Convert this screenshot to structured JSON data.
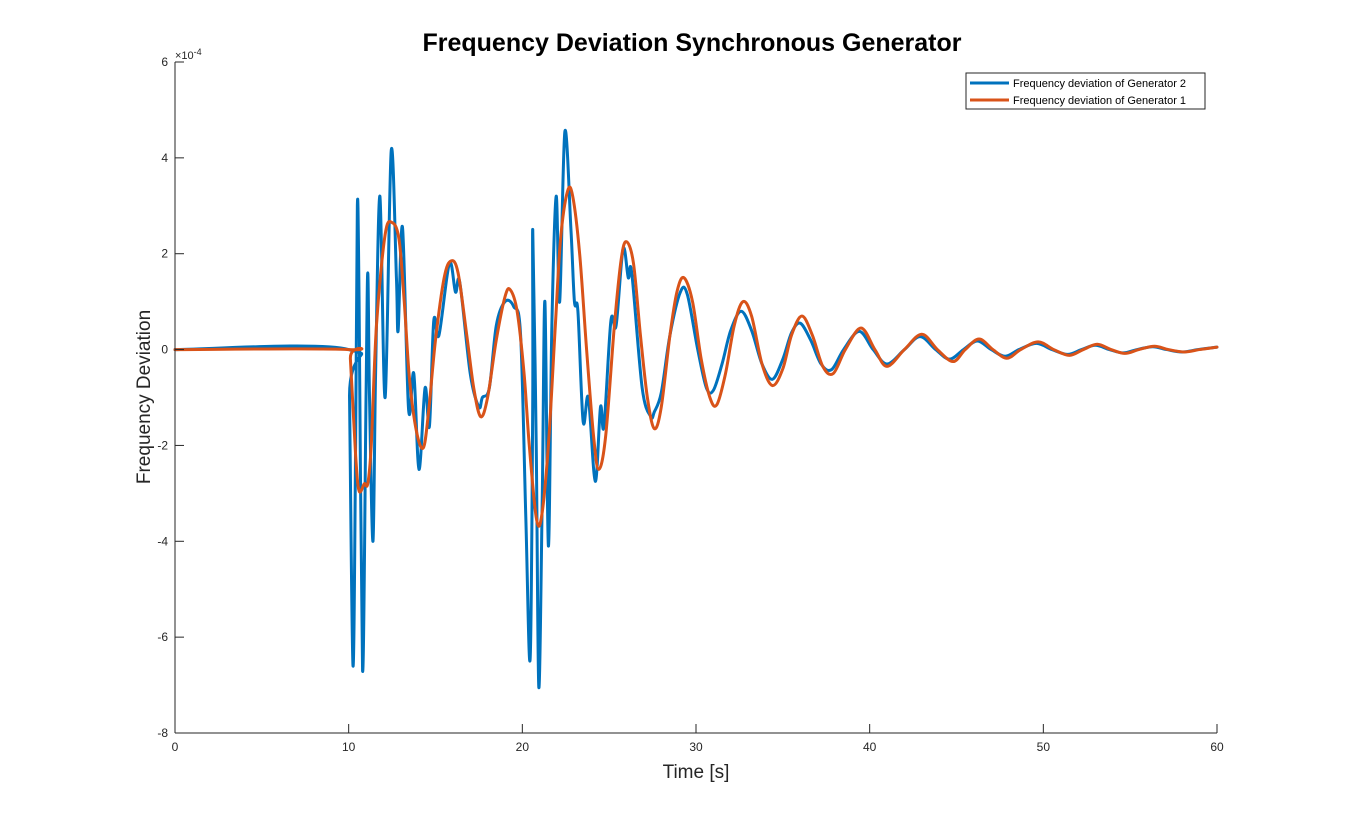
{
  "chart_data": {
    "type": "line",
    "title": "Frequency Deviation Synchronous Generator",
    "xlabel": "Time [s]",
    "ylabel": "Frequency Deviation",
    "xlim": [
      0,
      60
    ],
    "ylim": [
      -8,
      6
    ],
    "y_scale_exponent_label": "×10",
    "y_scale_exponent_power": "-4",
    "x_ticks": [
      "0",
      "10",
      "20",
      "30",
      "40",
      "50",
      "60"
    ],
    "y_ticks": [
      "-8",
      "-6",
      "-4",
      "-2",
      "0",
      "2",
      "4",
      "6"
    ],
    "grid": false,
    "legend_position": "top-right",
    "series": [
      {
        "name": "Frequency deviation of Generator 2",
        "color": "#0072BD",
        "points": [
          [
            0,
            0
          ],
          [
            10,
            0
          ],
          [
            10.05,
            -1.0
          ],
          [
            10.25,
            -6.6
          ],
          [
            10.4,
            -2.0
          ],
          [
            10.5,
            3.0
          ],
          [
            10.6,
            1.0
          ],
          [
            10.8,
            -6.7
          ],
          [
            11.0,
            -1.0
          ],
          [
            11.1,
            1.6
          ],
          [
            11.2,
            -1.0
          ],
          [
            11.4,
            -4.0
          ],
          [
            11.55,
            -0.5
          ],
          [
            11.8,
            3.2
          ],
          [
            12.1,
            -1.0
          ],
          [
            12.45,
            4.15
          ],
          [
            12.75,
            1.5
          ],
          [
            12.85,
            0.4
          ],
          [
            13.1,
            2.55
          ],
          [
            13.45,
            -1.25
          ],
          [
            13.75,
            -0.5
          ],
          [
            14.05,
            -2.5
          ],
          [
            14.4,
            -0.8
          ],
          [
            14.65,
            -1.6
          ],
          [
            14.9,
            0.6
          ],
          [
            15.2,
            0.3
          ],
          [
            15.8,
            1.8
          ],
          [
            16.15,
            1.2
          ],
          [
            16.4,
            1.4
          ],
          [
            17.0,
            -0.5
          ],
          [
            17.5,
            -1.2
          ],
          [
            17.7,
            -1.0
          ],
          [
            18.1,
            -0.8
          ],
          [
            18.5,
            0.5
          ],
          [
            19.0,
            1.0
          ],
          [
            19.5,
            0.9
          ],
          [
            19.9,
            0.3
          ],
          [
            20.2,
            -3.5
          ],
          [
            20.45,
            -6.45
          ],
          [
            20.6,
            -1.0
          ],
          [
            20.6,
            2.5
          ],
          [
            20.8,
            -2.0
          ],
          [
            20.95,
            -7.05
          ],
          [
            21.15,
            -3.0
          ],
          [
            21.3,
            1.0
          ],
          [
            21.5,
            -4.1
          ],
          [
            21.7,
            0.5
          ],
          [
            21.95,
            3.2
          ],
          [
            22.15,
            1.0
          ],
          [
            22.45,
            4.55
          ],
          [
            22.8,
            2.5
          ],
          [
            23.0,
            1.0
          ],
          [
            23.2,
            0.8
          ],
          [
            23.5,
            -1.5
          ],
          [
            23.8,
            -1.0
          ],
          [
            24.2,
            -2.75
          ],
          [
            24.5,
            -1.2
          ],
          [
            24.7,
            -1.6
          ],
          [
            25.1,
            0.6
          ],
          [
            25.4,
            0.5
          ],
          [
            25.8,
            2.1
          ],
          [
            26.1,
            1.5
          ],
          [
            26.3,
            1.6
          ],
          [
            26.9,
            -0.8
          ],
          [
            27.4,
            -1.4
          ],
          [
            27.6,
            -1.3
          ],
          [
            28.0,
            -0.9
          ],
          [
            28.5,
            0.3
          ],
          [
            29.1,
            1.2
          ],
          [
            29.5,
            1.15
          ],
          [
            30.1,
            0.0
          ],
          [
            30.6,
            -0.8
          ],
          [
            31.0,
            -0.85
          ],
          [
            31.5,
            -0.3
          ],
          [
            32.0,
            0.4
          ],
          [
            32.6,
            0.8
          ],
          [
            33.2,
            0.4
          ],
          [
            33.8,
            -0.3
          ],
          [
            34.4,
            -0.62
          ],
          [
            35.0,
            -0.2
          ],
          [
            35.5,
            0.35
          ],
          [
            36.0,
            0.55
          ],
          [
            36.6,
            0.2
          ],
          [
            37.2,
            -0.3
          ],
          [
            37.8,
            -0.42
          ],
          [
            38.5,
            0.0
          ],
          [
            39.4,
            0.38
          ],
          [
            40.2,
            0.0
          ],
          [
            41.0,
            -0.3
          ],
          [
            42.0,
            0.0
          ],
          [
            42.9,
            0.27
          ],
          [
            43.8,
            0.0
          ],
          [
            44.6,
            -0.2
          ],
          [
            45.4,
            0.0
          ],
          [
            46.2,
            0.18
          ],
          [
            47.0,
            0.0
          ],
          [
            47.8,
            -0.14
          ],
          [
            48.6,
            0.0
          ],
          [
            49.6,
            0.13
          ],
          [
            50.5,
            0.0
          ],
          [
            51.4,
            -0.1
          ],
          [
            52.2,
            0.0
          ],
          [
            53.0,
            0.09
          ],
          [
            53.8,
            0.0
          ],
          [
            54.6,
            -0.07
          ],
          [
            55.4,
            0.0
          ],
          [
            56.3,
            0.06
          ],
          [
            57.1,
            0.0
          ],
          [
            58.0,
            -0.05
          ],
          [
            58.9,
            0.0
          ],
          [
            60.0,
            0.05
          ]
        ]
      },
      {
        "name": "Frequency deviation of Generator 1",
        "color": "#D95319",
        "points": [
          [
            0,
            0
          ],
          [
            10,
            0
          ],
          [
            10.1,
            -0.2
          ],
          [
            10.4,
            -2.2
          ],
          [
            10.6,
            -2.95
          ],
          [
            10.9,
            -2.8
          ],
          [
            11.1,
            -2.8
          ],
          [
            11.3,
            -2.0
          ],
          [
            11.6,
            0.5
          ],
          [
            12.1,
            2.4
          ],
          [
            12.5,
            2.65
          ],
          [
            12.9,
            2.3
          ],
          [
            13.2,
            1.0
          ],
          [
            13.5,
            -0.6
          ],
          [
            13.9,
            -1.7
          ],
          [
            14.3,
            -2.05
          ],
          [
            14.6,
            -1.3
          ],
          [
            15.0,
            0.2
          ],
          [
            15.5,
            1.5
          ],
          [
            15.9,
            1.85
          ],
          [
            16.3,
            1.6
          ],
          [
            16.8,
            0.3
          ],
          [
            17.2,
            -0.8
          ],
          [
            17.6,
            -1.4
          ],
          [
            18.0,
            -1.0
          ],
          [
            18.5,
            0.2
          ],
          [
            19.0,
            1.1
          ],
          [
            19.3,
            1.25
          ],
          [
            19.7,
            0.8
          ],
          [
            20.1,
            -0.5
          ],
          [
            20.4,
            -2.0
          ],
          [
            20.8,
            -3.5
          ],
          [
            21.1,
            -3.5
          ],
          [
            21.5,
            -2.0
          ],
          [
            21.9,
            0.5
          ],
          [
            22.2,
            2.3
          ],
          [
            22.6,
            3.3
          ],
          [
            22.9,
            3.2
          ],
          [
            23.3,
            2.0
          ],
          [
            23.7,
            0.0
          ],
          [
            24.1,
            -1.8
          ],
          [
            24.4,
            -2.5
          ],
          [
            24.8,
            -1.8
          ],
          [
            25.3,
            0.5
          ],
          [
            25.7,
            1.9
          ],
          [
            26.0,
            2.25
          ],
          [
            26.4,
            1.8
          ],
          [
            26.8,
            0.3
          ],
          [
            27.2,
            -1.0
          ],
          [
            27.6,
            -1.65
          ],
          [
            28.0,
            -1.2
          ],
          [
            28.5,
            0.3
          ],
          [
            28.9,
            1.2
          ],
          [
            29.3,
            1.5
          ],
          [
            29.8,
            1.0
          ],
          [
            30.3,
            -0.2
          ],
          [
            30.8,
            -1.0
          ],
          [
            31.2,
            -1.15
          ],
          [
            31.7,
            -0.5
          ],
          [
            32.2,
            0.5
          ],
          [
            32.7,
            1.0
          ],
          [
            33.2,
            0.7
          ],
          [
            33.8,
            -0.3
          ],
          [
            34.4,
            -0.75
          ],
          [
            35.0,
            -0.4
          ],
          [
            35.5,
            0.3
          ],
          [
            36.1,
            0.7
          ],
          [
            36.7,
            0.3
          ],
          [
            37.3,
            -0.35
          ],
          [
            37.9,
            -0.5
          ],
          [
            38.6,
            0.0
          ],
          [
            39.5,
            0.45
          ],
          [
            40.3,
            0.0
          ],
          [
            41.0,
            -0.35
          ],
          [
            42.0,
            0.0
          ],
          [
            43.0,
            0.32
          ],
          [
            43.9,
            0.0
          ],
          [
            44.8,
            -0.25
          ],
          [
            45.5,
            0.0
          ],
          [
            46.3,
            0.22
          ],
          [
            47.1,
            0.0
          ],
          [
            47.9,
            -0.18
          ],
          [
            48.7,
            0.0
          ],
          [
            49.7,
            0.16
          ],
          [
            50.6,
            0.0
          ],
          [
            51.5,
            -0.12
          ],
          [
            52.3,
            0.0
          ],
          [
            53.1,
            0.11
          ],
          [
            53.9,
            0.0
          ],
          [
            54.7,
            -0.08
          ],
          [
            55.5,
            0.0
          ],
          [
            56.4,
            0.07
          ],
          [
            57.2,
            0.0
          ],
          [
            58.1,
            -0.05
          ],
          [
            59.0,
            0.0
          ],
          [
            60.0,
            0.05
          ]
        ]
      }
    ]
  }
}
